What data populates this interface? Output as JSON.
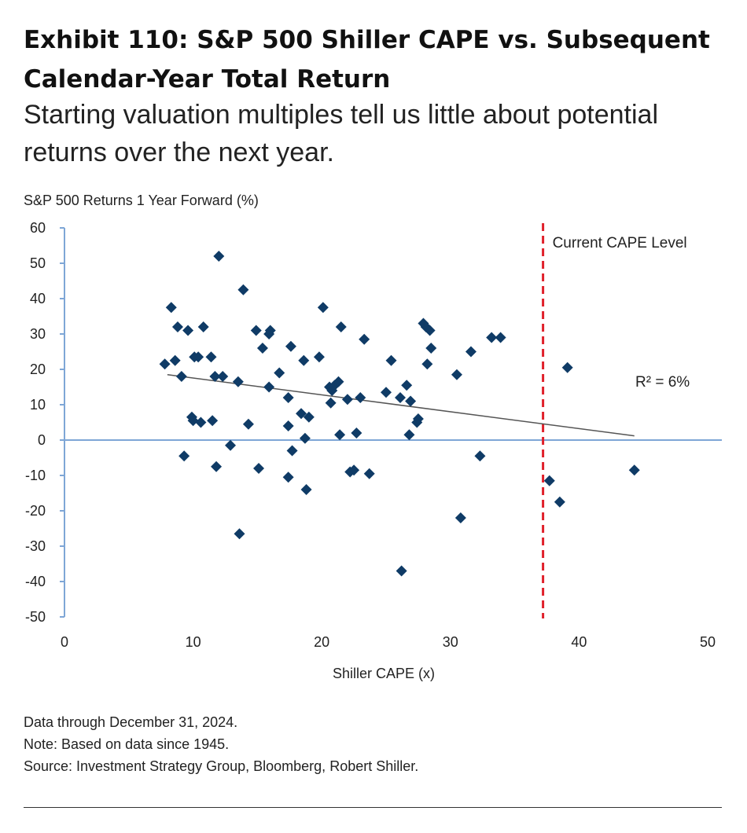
{
  "header": {
    "title_line1": "Exhibit 110: S&P 500 Shiller CAPE vs. Subsequent",
    "title_line2": "Calendar-Year Total Return",
    "subtitle_line1": "Starting valuation multiples tell us little about potential",
    "subtitle_line2": "returns over the next year."
  },
  "footer": {
    "line1": "Data through December 31, 2024.",
    "line2": "Note: Based on data since 1945.",
    "line3": "Source: Investment Strategy Group, Bloomberg, Robert Shiller."
  },
  "chart_data": {
    "type": "scatter",
    "title": "Exhibit 110: S&P 500 Shiller CAPE vs. Subsequent Calendar-Year Total Return",
    "xlabel": "Shiller CAPE (x)",
    "ylabel": "S&P 500 Returns 1 Year Forward (%)",
    "xlim": [
      0,
      50
    ],
    "ylim": [
      -50,
      60
    ],
    "xticks": [
      "0",
      "10",
      "20",
      "30",
      "40",
      "50"
    ],
    "yticks": [
      "60",
      "50",
      "40",
      "30",
      "20",
      "10",
      "0",
      "-10",
      "-20",
      "-30",
      "-40",
      "-50"
    ],
    "grid": false,
    "marker_color": "#0f3b66",
    "trendline": {
      "x": [
        8,
        44.3
      ],
      "y": [
        18.5,
        1.2
      ],
      "color": "#555555"
    },
    "current_cape": {
      "value": 37.2,
      "label": "Current CAPE Level",
      "color": "#e0202a"
    },
    "annotation": "R² = 6%",
    "points": [
      [
        7.8,
        21.5
      ],
      [
        8.3,
        37.5
      ],
      [
        8.6,
        22.5
      ],
      [
        8.8,
        32
      ],
      [
        9.1,
        18
      ],
      [
        9.3,
        -4.5
      ],
      [
        9.6,
        31
      ],
      [
        9.9,
        6.5
      ],
      [
        10.0,
        5.5
      ],
      [
        10.1,
        23.5
      ],
      [
        10.4,
        23.5
      ],
      [
        10.6,
        5
      ],
      [
        10.8,
        32
      ],
      [
        11.4,
        23.5
      ],
      [
        11.5,
        5.5
      ],
      [
        11.7,
        18
      ],
      [
        11.8,
        -7.5
      ],
      [
        12.0,
        52
      ],
      [
        12.3,
        18
      ],
      [
        12.9,
        -1.5
      ],
      [
        13.5,
        16.5
      ],
      [
        13.6,
        -26.5
      ],
      [
        13.9,
        42.5
      ],
      [
        14.3,
        4.5
      ],
      [
        14.9,
        31
      ],
      [
        15.1,
        -8
      ],
      [
        15.4,
        26
      ],
      [
        15.9,
        15
      ],
      [
        15.9,
        30
      ],
      [
        16.0,
        31
      ],
      [
        16.7,
        19
      ],
      [
        17.4,
        12
      ],
      [
        17.4,
        4
      ],
      [
        17.4,
        -10.5
      ],
      [
        17.6,
        26.5
      ],
      [
        17.7,
        -3
      ],
      [
        18.4,
        7.5
      ],
      [
        18.6,
        22.5
      ],
      [
        18.7,
        0.5
      ],
      [
        18.8,
        -14
      ],
      [
        19.0,
        6.5
      ],
      [
        19.8,
        23.5
      ],
      [
        20.1,
        37.5
      ],
      [
        20.6,
        15
      ],
      [
        20.7,
        10.5
      ],
      [
        20.8,
        14
      ],
      [
        21.0,
        15.5
      ],
      [
        21.3,
        16.5
      ],
      [
        21.4,
        1.5
      ],
      [
        21.5,
        32
      ],
      [
        22.0,
        11.5
      ],
      [
        22.2,
        -9
      ],
      [
        22.5,
        -8.5
      ],
      [
        22.7,
        2
      ],
      [
        23.0,
        12
      ],
      [
        23.3,
        28.5
      ],
      [
        23.7,
        -9.5
      ],
      [
        25.0,
        13.5
      ],
      [
        25.4,
        22.5
      ],
      [
        26.1,
        12
      ],
      [
        26.2,
        -37
      ],
      [
        26.6,
        15.5
      ],
      [
        26.8,
        1.5
      ],
      [
        26.9,
        11
      ],
      [
        27.4,
        5
      ],
      [
        27.5,
        6
      ],
      [
        27.9,
        33
      ],
      [
        28.1,
        32
      ],
      [
        28.2,
        21.5
      ],
      [
        28.4,
        31
      ],
      [
        28.5,
        26
      ],
      [
        30.5,
        18.5
      ],
      [
        30.8,
        -22
      ],
      [
        31.6,
        25
      ],
      [
        32.3,
        -4.5
      ],
      [
        33.2,
        29
      ],
      [
        33.9,
        29
      ],
      [
        37.7,
        -11.5
      ],
      [
        38.5,
        -17.5
      ],
      [
        39.1,
        20.5
      ],
      [
        44.3,
        -8.5
      ]
    ]
  }
}
